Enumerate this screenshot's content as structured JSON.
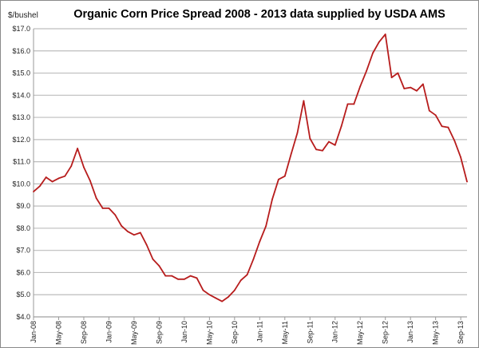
{
  "chart_data": {
    "type": "line",
    "title": "Organic Corn Price Spread 2008 - 2013 data supplied by USDA AMS",
    "ylabel": "$/bushel",
    "xlabel": "",
    "ylim": [
      4,
      17
    ],
    "grid": true,
    "legend": "none",
    "line_color": "#b71c1c",
    "yticks": [
      "$4.0",
      "$5.0",
      "$6.0",
      "$7.0",
      "$8.0",
      "$9.0",
      "$10.0",
      "$11.0",
      "$12.0",
      "$13.0",
      "$14.0",
      "$15.0",
      "$16.0",
      "$17.0"
    ],
    "xtick_labels": [
      "Jan-08",
      "May-08",
      "Sep-08",
      "Jan-09",
      "May-09",
      "Sep-09",
      "Jan-10",
      "May-10",
      "Sep-10",
      "Jan-11",
      "May-11",
      "Sep-11",
      "Jan-12",
      "May-12",
      "Sep-12",
      "Jan-13",
      "May-13",
      "Sep-13"
    ],
    "series": [
      {
        "name": "Organic Corn Price",
        "start": "Jan-08",
        "interval": "monthly",
        "values": [
          9.65,
          9.9,
          10.3,
          10.1,
          10.25,
          10.35,
          10.8,
          11.6,
          10.75,
          10.15,
          9.35,
          8.9,
          8.9,
          8.6,
          8.1,
          7.85,
          7.7,
          7.8,
          7.25,
          6.6,
          6.3,
          5.85,
          5.85,
          5.7,
          5.7,
          5.85,
          5.75,
          5.2,
          5.0,
          4.85,
          4.7,
          4.9,
          5.2,
          5.65,
          5.9,
          6.6,
          7.4,
          8.1,
          9.3,
          10.2,
          10.35,
          11.35,
          12.3,
          13.75,
          12.05,
          11.55,
          11.5,
          11.9,
          11.75,
          12.6,
          13.6,
          13.6,
          14.4,
          15.1,
          15.9,
          16.4,
          16.75,
          14.8,
          15.0,
          14.3,
          14.35,
          14.2,
          14.5,
          13.3,
          13.1,
          12.6,
          12.55,
          11.95,
          11.2,
          10.1
        ]
      }
    ]
  }
}
